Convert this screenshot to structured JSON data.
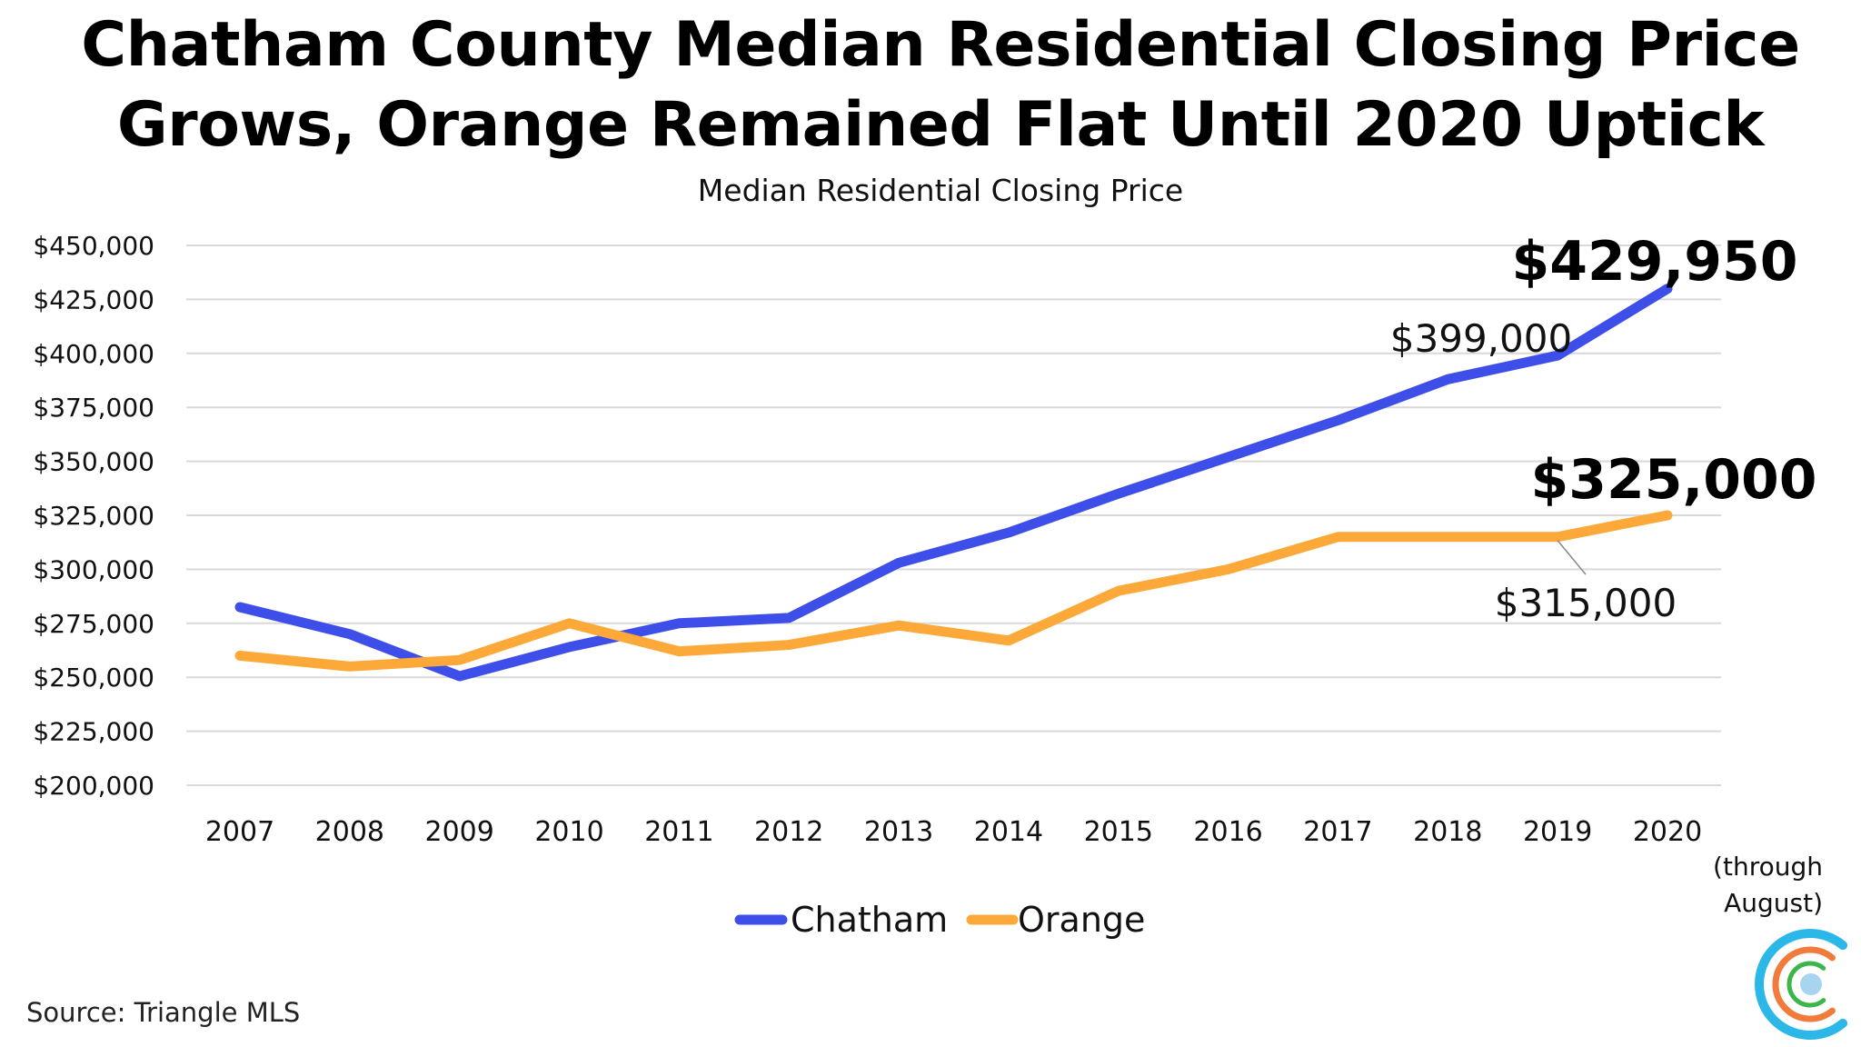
{
  "title_line1": "Chatham County Median Residential Closing Price",
  "title_line2": "Grows, Orange Remained Flat Until 2020 Uptick",
  "source": "Source: Triangle MLS",
  "chart_data": {
    "type": "line",
    "title": "Median Residential Closing Price",
    "xlabel": "",
    "ylabel": "",
    "x": [
      "2007",
      "2008",
      "2009",
      "2010",
      "2011",
      "2012",
      "2013",
      "2014",
      "2015",
      "2016",
      "2017",
      "2018",
      "2019",
      "2020"
    ],
    "x_note": "(through August)",
    "ylim": [
      200000,
      450000
    ],
    "yticks": [
      200000,
      225000,
      250000,
      275000,
      300000,
      325000,
      350000,
      375000,
      400000,
      425000,
      450000
    ],
    "ytick_labels": [
      "$200,000",
      "$225,000",
      "$250,000",
      "$275,000",
      "$300,000",
      "$325,000",
      "$350,000",
      "$375,000",
      "$400,000",
      "$425,000",
      "$450,000"
    ],
    "grid": true,
    "legend_placement": "bottom",
    "series": [
      {
        "name": "Chatham",
        "color": "#3d4fe8",
        "values": [
          282500,
          270000,
          250500,
          264000,
          275000,
          277500,
          303000,
          317000,
          335000,
          352000,
          369000,
          388000,
          399000,
          429950
        ]
      },
      {
        "name": "Orange",
        "color": "#fda93a",
        "values": [
          260000,
          255000,
          258000,
          275000,
          262000,
          265000,
          274000,
          267000,
          290000,
          300000,
          315000,
          315000,
          315000,
          325000
        ]
      }
    ],
    "annotations": [
      {
        "series": "Chatham",
        "x": "2020",
        "text": "$429,950",
        "emphasis": "large"
      },
      {
        "series": "Chatham",
        "x": "2019",
        "text": "$399,000",
        "emphasis": "normal"
      },
      {
        "series": "Orange",
        "x": "2020",
        "text": "$325,000",
        "emphasis": "large"
      },
      {
        "series": "Orange",
        "x": "2019",
        "text": "$315,000",
        "emphasis": "normal"
      }
    ]
  },
  "logo": {
    "colors": [
      "#2bb8e8",
      "#f07b3a",
      "#3cb54a",
      "#a8d4f0"
    ]
  }
}
